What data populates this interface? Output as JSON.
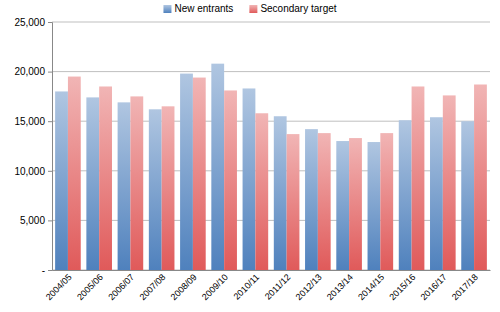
{
  "chart_data": {
    "type": "bar",
    "categories": [
      "2004/05",
      "2005/06",
      "2006/07",
      "2007/08",
      "2008/09",
      "2009/10",
      "2010/11",
      "2011/12",
      "2012/13",
      "2013/14",
      "2014/15",
      "2015/16",
      "2016/17",
      "2017/18"
    ],
    "series": [
      {
        "name": "New entrants",
        "color": "#4f81bd",
        "values": [
          18000,
          17400,
          16900,
          16200,
          19800,
          20800,
          18300,
          15500,
          14200,
          13000,
          12900,
          15100,
          15400,
          15000
        ]
      },
      {
        "name": "Secondary target",
        "color": "#e05a5a",
        "values": [
          19500,
          18500,
          17500,
          16500,
          19400,
          18100,
          15800,
          13700,
          13800,
          13300,
          13800,
          18500,
          17600,
          18700
        ]
      }
    ],
    "ylim": [
      0,
      25000
    ],
    "yticks": [
      {
        "value": 0,
        "label": "-"
      },
      {
        "value": 5000,
        "label": "5,000"
      },
      {
        "value": 10000,
        "label": "10,000"
      },
      {
        "value": 15000,
        "label": "15,000"
      },
      {
        "value": 20000,
        "label": "20,000"
      },
      {
        "value": 25000,
        "label": "25,000"
      }
    ],
    "grid": true,
    "legend": "top"
  }
}
